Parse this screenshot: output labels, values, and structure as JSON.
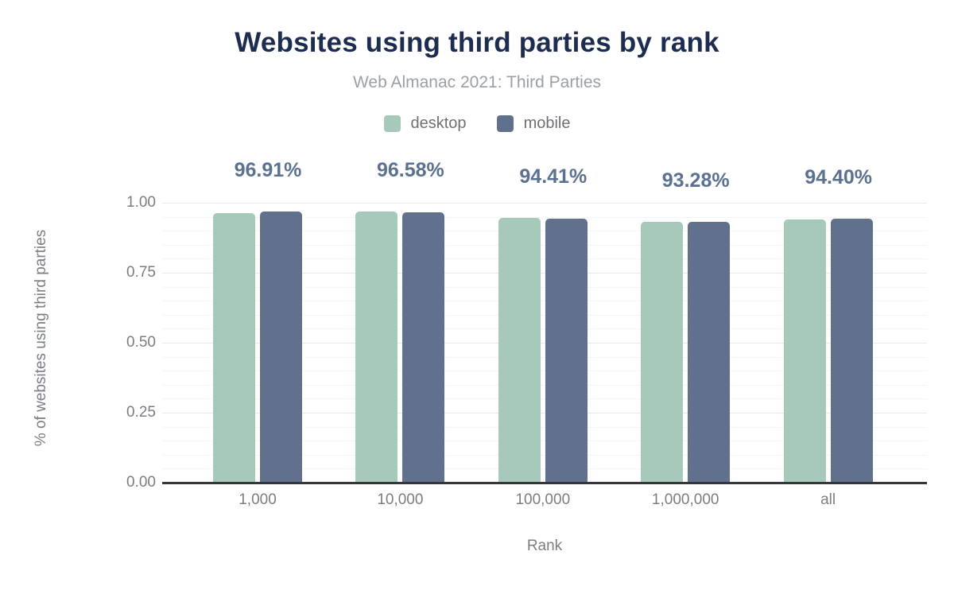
{
  "title": "Websites using third parties by rank",
  "subtitle": "Web Almanac 2021: Third Parties",
  "legend": {
    "items": [
      {
        "label": "desktop",
        "color": "#a7c9ba"
      },
      {
        "label": "mobile",
        "color": "#61708c"
      }
    ]
  },
  "chart_data": {
    "type": "bar",
    "title": "Websites using third parties by rank",
    "subtitle": "Web Almanac 2021: Third Parties",
    "categories": [
      "1,000",
      "10,000",
      "100,000",
      "1,000,000",
      "all"
    ],
    "series": [
      {
        "name": "desktop",
        "color": "#a7c9ba",
        "values": [
          0.964,
          0.97,
          0.946,
          0.933,
          0.939
        ]
      },
      {
        "name": "mobile",
        "color": "#61708c",
        "values": [
          0.9691,
          0.9658,
          0.9441,
          0.9328,
          0.944
        ]
      }
    ],
    "value_labels": [
      "96.91%",
      "96.58%",
      "94.41%",
      "93.28%",
      "94.40%"
    ],
    "value_labels_series": "mobile",
    "xlabel": "Rank",
    "ylabel": "% of websites using third parties",
    "yticks": [
      "0.00",
      "0.25",
      "0.50",
      "0.75",
      "1.00"
    ],
    "ylim": [
      0,
      1
    ],
    "grid": {
      "major_step": 0.25,
      "minor_step": 0.05,
      "orientation": "horizontal"
    },
    "legend_position": "top"
  },
  "colors": {
    "title_text": "#1d2d4f",
    "subtitle_text": "#9aa0a6",
    "value_label_text": "#5b7191",
    "axis_text": "#797e84",
    "axis_line": "#33363b",
    "grid_major": "#e7e9eb",
    "grid_minor": "#f4f5f7",
    "background": "#ffffff"
  }
}
